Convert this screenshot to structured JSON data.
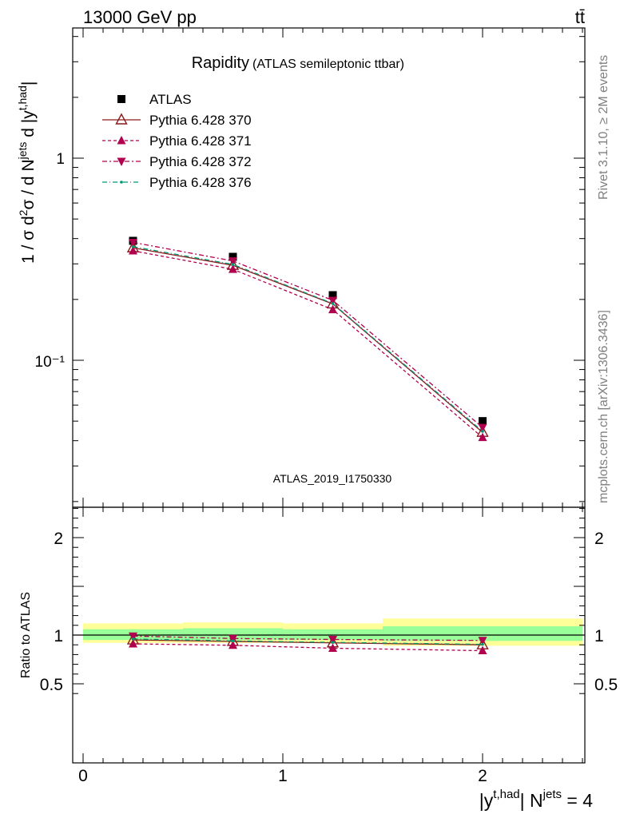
{
  "header": {
    "energy_label": "13000 GeV pp",
    "process_label": "tt̄"
  },
  "side_labels": {
    "rivet": "Rivet 3.1.10, ≥ 2M events",
    "mcplots": "mcplots.cern.ch [arXiv:1306.3436]"
  },
  "colors": {
    "data": "#000000",
    "p370": "#8b1a1a",
    "p371": "#b0004e",
    "p372": "#b0004e",
    "p376": "#009977",
    "band_inner": "#99ff99",
    "band_outer": "#ffff99",
    "watermark": "#a0a0a0"
  },
  "chart_data": [
    {
      "type": "line",
      "title": "Rapidity",
      "subtitle": "(ATLAS semileptonic ttbar)",
      "watermark": "ATLAS_2019_I1750330",
      "ylabel": "1 / σ d²σ / d Njets d |yt,had|",
      "yscale": "log",
      "ylim": [
        0.03,
        4.6
      ],
      "xlim": [
        -0.1,
        2.55
      ],
      "y_tick_labels": [
        "10⁻¹",
        "1"
      ],
      "legend_position": "top-left",
      "x": [
        0.25,
        0.75,
        1.25,
        2.0
      ],
      "x_bin_edges": [
        0,
        0.5,
        1.0,
        1.5,
        2.5
      ],
      "series": [
        {
          "name": "ATLAS",
          "values": [
            0.39,
            0.325,
            0.21,
            0.05
          ]
        },
        {
          "name": "Pythia 6.428 370",
          "values": [
            0.36,
            0.295,
            0.19,
            0.044
          ]
        },
        {
          "name": "Pythia 6.428 371",
          "values": [
            0.348,
            0.282,
            0.178,
            0.0415
          ]
        },
        {
          "name": "Pythia 6.428 372",
          "values": [
            0.383,
            0.31,
            0.198,
            0.0465
          ]
        },
        {
          "name": "Pythia 6.428 376",
          "values": [
            0.365,
            0.298,
            0.191,
            0.0445
          ]
        }
      ]
    },
    {
      "type": "line",
      "ylabel": "Ratio to ATLAS",
      "xlabel": "|yt,had| Njets = 4",
      "ylim": [
        0.4,
        2.3
      ],
      "xlim": [
        -0.1,
        2.55
      ],
      "x_tick_labels": [
        "0",
        "1",
        "2"
      ],
      "y_tick_labels": [
        "0.5",
        "1",
        "2"
      ],
      "bands": [
        {
          "x0": 0.0,
          "x1": 0.5,
          "inner": [
            0.95,
            1.06
          ],
          "outer": [
            0.92,
            1.12
          ]
        },
        {
          "x0": 0.5,
          "x1": 1.0,
          "inner": [
            0.95,
            1.07
          ],
          "outer": [
            0.92,
            1.13
          ]
        },
        {
          "x0": 1.0,
          "x1": 1.5,
          "inner": [
            0.95,
            1.06
          ],
          "outer": [
            0.92,
            1.12
          ]
        },
        {
          "x0": 1.5,
          "x1": 2.5,
          "inner": [
            0.94,
            1.09
          ],
          "outer": [
            0.89,
            1.17
          ]
        }
      ],
      "x": [
        0.25,
        0.75,
        1.25,
        2.0
      ],
      "series": [
        {
          "name": "Pythia 6.428 370",
          "values": [
            0.95,
            0.935,
            0.92,
            0.9
          ]
        },
        {
          "name": "Pythia 6.428 371",
          "values": [
            0.91,
            0.895,
            0.865,
            0.84
          ]
        },
        {
          "name": "Pythia 6.428 372",
          "values": [
            0.99,
            0.965,
            0.955,
            0.945
          ]
        },
        {
          "name": "Pythia 6.428 376",
          "values": [
            0.96,
            0.94,
            0.925,
            0.905
          ]
        }
      ]
    }
  ]
}
